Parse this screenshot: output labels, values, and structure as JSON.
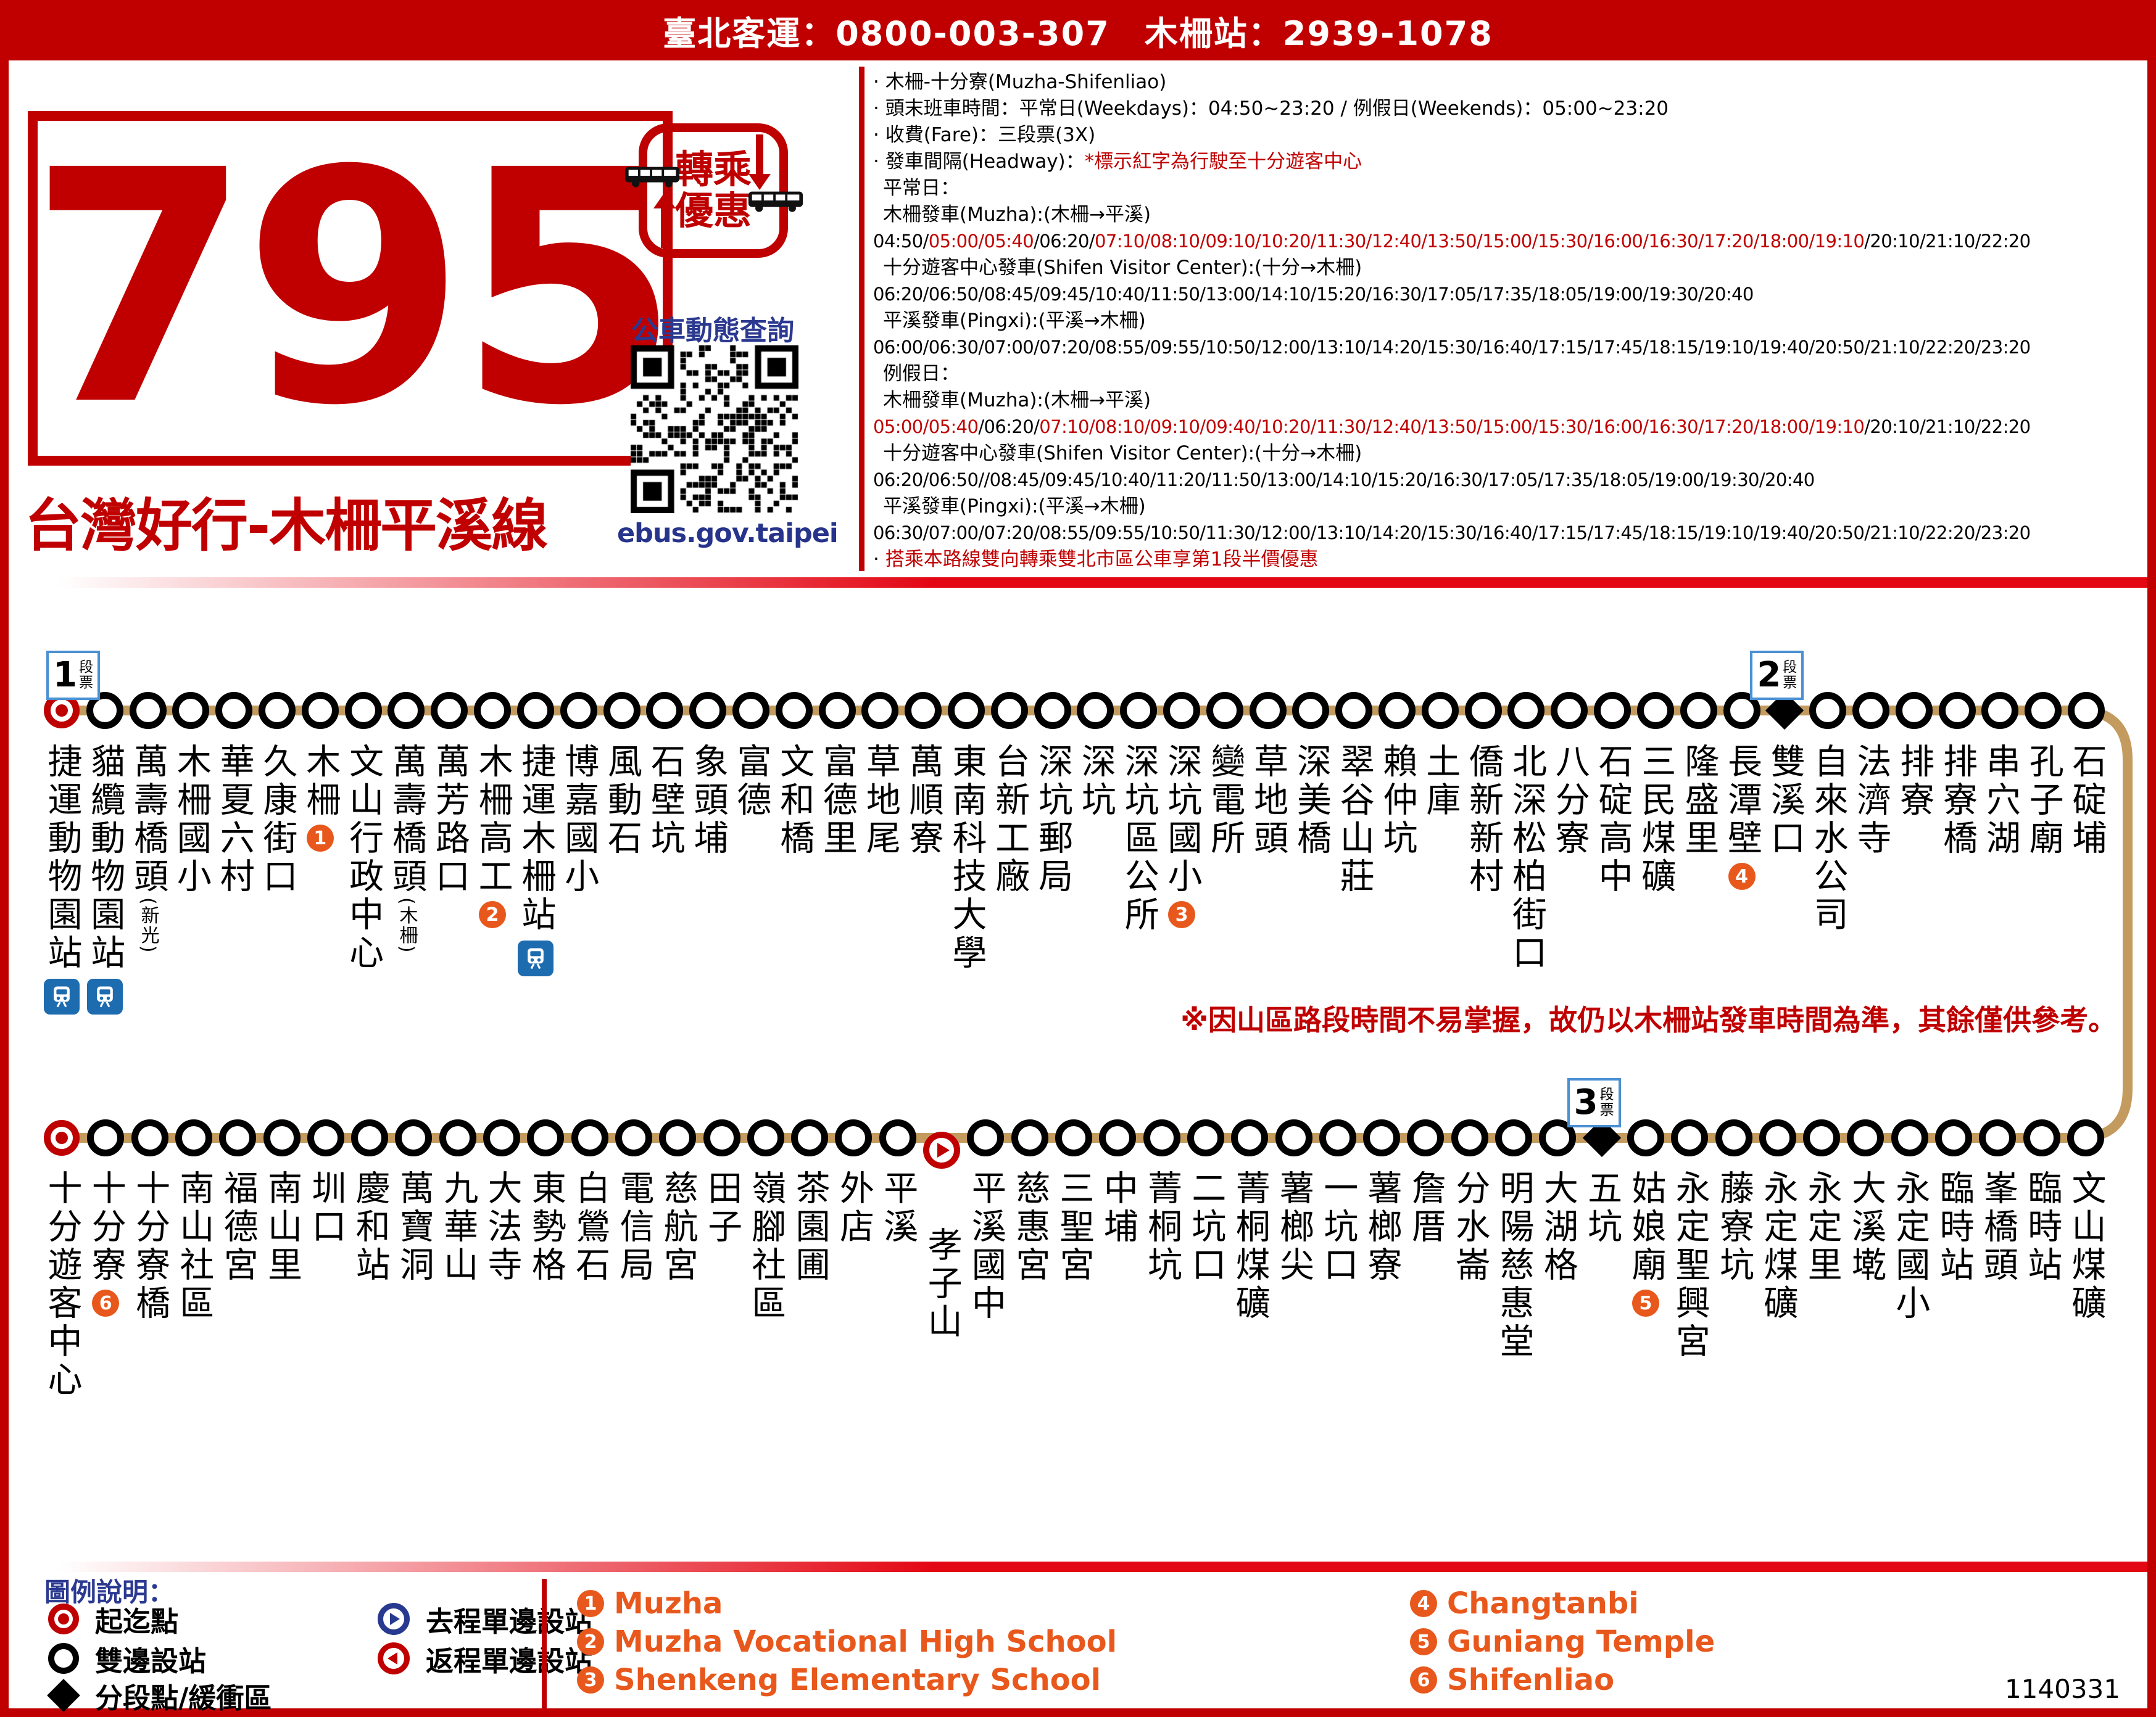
{
  "banner": {
    "text": "臺北客運：0800-003-307　木柵站：2939-1078"
  },
  "route": {
    "number": "795",
    "name": "台灣好行-木柵平溪線"
  },
  "transfer_badge": {
    "line1": "轉乘",
    "line2": "優惠"
  },
  "ebus": {
    "title": "公車動態查詢",
    "url": "ebus.gov.taipei"
  },
  "colors": {
    "red": "#c00000",
    "orange": "#e8581c",
    "line_tan": "#c49b5e",
    "mrt_blue": "#1e6cb0",
    "legend_blue": "#283a8f",
    "label_blue": "#2b3990"
  },
  "schedule": {
    "lines": [
      {
        "s": [
          [
            "· 木柵-十分寮(Muzha-Shifenliao)",
            "b"
          ]
        ]
      },
      {
        "s": [
          [
            "· 頭末班車時間：平常日(Weekdays)：04:50~23:20 / 例假日(Weekends)：05:00~23:20",
            "b"
          ]
        ]
      },
      {
        "s": [
          [
            "· 收費(Fare)：三段票(3X)",
            "b"
          ]
        ]
      },
      {
        "s": [
          [
            "· 發車間隔(Headway)：",
            "b"
          ],
          [
            "*標示紅字為行駛至十分遊客中心",
            "r"
          ]
        ]
      },
      {
        "i": 1,
        "s": [
          [
            "平常日：",
            "b"
          ]
        ]
      },
      {
        "i": 1,
        "s": [
          [
            "木柵發車(Muzha):(木柵→平溪)",
            "b"
          ]
        ]
      },
      {
        "t": 1,
        "s": [
          [
            "04:50/",
            "b"
          ],
          [
            "05:00/05:40",
            "r"
          ],
          [
            "/06:20/",
            "b"
          ],
          [
            "07:10/08:10/09:10/10:20/11:30/12:40/13:50/15:00/15:30/16:00/16:30/17:20/18:00/19:10",
            "r"
          ],
          [
            "/20:10/21:10/22:20",
            "b"
          ]
        ]
      },
      {
        "i": 1,
        "s": [
          [
            "十分遊客中心發車(Shifen Visitor Center):(十分→木柵)",
            "b"
          ]
        ]
      },
      {
        "t": 1,
        "s": [
          [
            "06:20/06:50/08:45/09:45/10:40/11:50/13:00/14:10/15:20/16:30/17:05/17:35/18:05/19:00/19:30/20:40",
            "b"
          ]
        ]
      },
      {
        "i": 1,
        "s": [
          [
            "平溪發車(Pingxi):(平溪→木柵)",
            "b"
          ]
        ]
      },
      {
        "t": 1,
        "s": [
          [
            "06:00/06:30/07:00/07:20/08:55/09:55/10:50/12:00/13:10/14:20/15:30/16:40/17:15/17:45/18:15/19:10/19:40/20:50/21:10/22:20/23:20",
            "b"
          ]
        ]
      },
      {
        "i": 1,
        "s": [
          [
            "例假日：",
            "b"
          ]
        ]
      },
      {
        "i": 1,
        "s": [
          [
            "木柵發車(Muzha):(木柵→平溪)",
            "b"
          ]
        ]
      },
      {
        "t": 1,
        "s": [
          [
            "05:00/05:40",
            "r"
          ],
          [
            "/06:20/",
            "b"
          ],
          [
            "07:10/08:10/09:10/09:40/10:20/11:30/12:40/13:50/15:00/15:30/16:00/16:30/17:20/18:00/19:10",
            "r"
          ],
          [
            "/20:10/21:10/22:20",
            "b"
          ]
        ]
      },
      {
        "i": 1,
        "s": [
          [
            "十分遊客中心發車(Shifen Visitor Center):(十分→木柵)",
            "b"
          ]
        ]
      },
      {
        "t": 1,
        "s": [
          [
            "06:20/06:50//08:45/09:45/10:40/11:20/11:50/13:00/14:10/15:20/16:30/17:05/17:35/18:05/19:00/19:30/20:40",
            "b"
          ]
        ]
      },
      {
        "i": 1,
        "s": [
          [
            "平溪發車(Pingxi):(平溪→木柵)",
            "b"
          ]
        ]
      },
      {
        "t": 1,
        "s": [
          [
            "06:30/07:00/07:20/08:55/09:55/10:50/11:30/12:00/13:10/14:20/15:30/16:40/17:15/17:45/18:15/19:10/19:40/20:50/21:10/22:20/23:20",
            "b"
          ]
        ]
      },
      {
        "s": [
          [
            "· ",
            "b"
          ],
          [
            "搭乘本路線雙向轉乘雙北市區公車享第1段半價優惠",
            "r"
          ]
        ]
      }
    ]
  },
  "map": {
    "fare_unit": "段票",
    "note": "※因山區路段時間不易掌握，故仍以木柵站發車時間為準，其餘僅供參考。",
    "row1": [
      {
        "n": "捷運動物園站",
        "m": "o",
        "ic": [
          "mrt"
        ],
        "f": "1"
      },
      {
        "n": "貓纜動物園站",
        "ic": [
          "gondola"
        ]
      },
      {
        "n": "萬壽橋頭",
        "sub": "(新光)"
      },
      {
        "n": "木柵國小"
      },
      {
        "n": "華夏六村"
      },
      {
        "n": "久康街口"
      },
      {
        "n": "木柵",
        "badge": "1"
      },
      {
        "n": "文山行政中心"
      },
      {
        "n": "萬壽橋頭",
        "sub": "(木柵)"
      },
      {
        "n": "萬芳路口"
      },
      {
        "n": "木柵高工",
        "badge": "2"
      },
      {
        "n": "捷運木柵站",
        "ic": [
          "mrt"
        ]
      },
      {
        "n": "博嘉國小"
      },
      {
        "n": "風動石"
      },
      {
        "n": "石壁坑"
      },
      {
        "n": "象頭埔"
      },
      {
        "n": "富德"
      },
      {
        "n": "文和橋"
      },
      {
        "n": "富德里"
      },
      {
        "n": "草地尾"
      },
      {
        "n": "萬順寮"
      },
      {
        "n": "東南科技大學"
      },
      {
        "n": "台新工廠"
      },
      {
        "n": "深坑郵局"
      },
      {
        "n": "深坑"
      },
      {
        "n": "深坑區公所"
      },
      {
        "n": "深坑國小",
        "badge": "3"
      },
      {
        "n": "變電所"
      },
      {
        "n": "草地頭"
      },
      {
        "n": "深美橋"
      },
      {
        "n": "翠谷山莊"
      },
      {
        "n": "賴仲坑"
      },
      {
        "n": "土庫"
      },
      {
        "n": "僑新新村"
      },
      {
        "n": "北深松柏街口"
      },
      {
        "n": "八分寮"
      },
      {
        "n": "石碇高中"
      },
      {
        "n": "三民煤礦"
      },
      {
        "n": "隆盛里"
      },
      {
        "n": "長潭壁",
        "badge": "4"
      },
      {
        "n": "雙溪口",
        "m": "d",
        "f": "2"
      },
      {
        "n": "自來水公司"
      },
      {
        "n": "法濟寺"
      },
      {
        "n": "排寮"
      },
      {
        "n": "排寮橋"
      },
      {
        "n": "串穴湖"
      },
      {
        "n": "孔子廟"
      },
      {
        "n": "石碇埔"
      }
    ],
    "row2": [
      {
        "n": "十分遊客中心",
        "m": "o"
      },
      {
        "n": "十分寮",
        "badge": "6"
      },
      {
        "n": "十分寮橋"
      },
      {
        "n": "南山社區"
      },
      {
        "n": "福德宮"
      },
      {
        "n": "南山里"
      },
      {
        "n": "圳口"
      },
      {
        "n": "慶和站"
      },
      {
        "n": "萬寶洞"
      },
      {
        "n": "九華山"
      },
      {
        "n": "大法寺"
      },
      {
        "n": "東勢格"
      },
      {
        "n": "白鶯石"
      },
      {
        "n": "電信局"
      },
      {
        "n": "慈航宮"
      },
      {
        "n": "田子"
      },
      {
        "n": "嶺腳社區"
      },
      {
        "n": "茶園圃"
      },
      {
        "n": "外店"
      },
      {
        "n": "平溪"
      },
      {
        "n": "孝子山",
        "m": "p"
      },
      {
        "n": "平溪國中"
      },
      {
        "n": "慈惠宮"
      },
      {
        "n": "三聖宮"
      },
      {
        "n": "中埔"
      },
      {
        "n": "菁桐坑"
      },
      {
        "n": "二坑口"
      },
      {
        "n": "菁桐煤礦"
      },
      {
        "n": "薯榔尖"
      },
      {
        "n": "一坑口"
      },
      {
        "n": "薯榔寮"
      },
      {
        "n": "詹厝"
      },
      {
        "n": "分水崙"
      },
      {
        "n": "明陽慈惠堂"
      },
      {
        "n": "大湖格"
      },
      {
        "n": "五坑",
        "m": "d",
        "f": "3"
      },
      {
        "n": "姑娘廟",
        "badge": "5"
      },
      {
        "n": "永定聖興宮"
      },
      {
        "n": "藤寮坑"
      },
      {
        "n": "永定煤礦"
      },
      {
        "n": "永定里"
      },
      {
        "n": "大溪墘"
      },
      {
        "n": "永定國小"
      },
      {
        "n": "臨時站"
      },
      {
        "n": "峯橋頭"
      },
      {
        "n": "臨時站"
      },
      {
        "n": "文山煤礦"
      }
    ]
  },
  "legend": {
    "title": "圖例說明：",
    "left": [
      {
        "icon": "origin-icon",
        "label": "起迄點"
      },
      {
        "icon": "both-sides-icon",
        "label": "雙邊設站"
      },
      {
        "icon": "segment-icon",
        "label": "分段點/緩衝區"
      }
    ],
    "right": [
      {
        "icon": "outbound-oneside-icon",
        "label": "去程單邊設站"
      },
      {
        "icon": "return-oneside-icon",
        "label": "返程單邊設站"
      }
    ]
  },
  "landmarks": {
    "col1": [
      {
        "num": "1",
        "name": "Muzha"
      },
      {
        "num": "2",
        "name": "Muzha Vocational High School"
      },
      {
        "num": "3",
        "name": "Shenkeng Elementary School"
      }
    ],
    "col2": [
      {
        "num": "4",
        "name": "Changtanbi"
      },
      {
        "num": "5",
        "name": "Guniang Temple"
      },
      {
        "num": "6",
        "name": "Shifenliao"
      }
    ]
  },
  "doc_number": "1140331"
}
